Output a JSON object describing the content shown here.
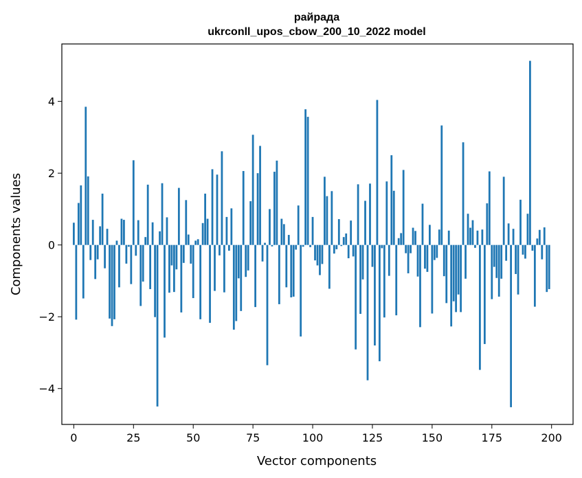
{
  "chart_data": {
    "type": "bar",
    "title_line1": "райрада",
    "title_line2": "ukrconll_upos_cbow_200_10_2022 model",
    "xlabel": "Vector components",
    "ylabel": "Components values",
    "xlim": [
      -5,
      209
    ],
    "ylim": [
      -5,
      5.6
    ],
    "xticks": [
      0,
      25,
      50,
      75,
      100,
      125,
      150,
      175,
      200
    ],
    "yticks": [
      -4,
      -2,
      0,
      2,
      4
    ],
    "ytick_labels": [
      "−4",
      "−2",
      "0",
      "2",
      "4"
    ],
    "bar_color": "#1f77b4",
    "grid": false,
    "values": [
      0.62,
      -2.08,
      1.17,
      1.66,
      -1.49,
      3.85,
      1.91,
      -0.42,
      0.7,
      -0.95,
      -0.4,
      0.52,
      1.43,
      -0.65,
      0.45,
      -2.05,
      -2.26,
      -2.07,
      0.12,
      -1.18,
      0.73,
      0.7,
      -0.52,
      -0.05,
      -1.09,
      2.36,
      -0.3,
      0.69,
      -1.7,
      -1.02,
      0.22,
      1.68,
      -1.23,
      0.63,
      -2.01,
      -4.5,
      0.38,
      1.72,
      -2.58,
      0.77,
      -1.33,
      -0.57,
      -1.31,
      -0.68,
      1.59,
      -1.88,
      -0.5,
      1.25,
      0.29,
      -0.52,
      -1.48,
      0.12,
      0.16,
      -2.07,
      0.61,
      1.43,
      0.73,
      -2.17,
      2.11,
      -1.28,
      1.96,
      -0.29,
      2.61,
      -1.32,
      0.78,
      -0.16,
      1.02,
      -2.36,
      -2.12,
      -0.93,
      -1.84,
      2.06,
      -0.89,
      -0.71,
      1.22,
      3.07,
      -1.73,
      2.0,
      2.76,
      -0.46,
      0.06,
      -3.35,
      1.0,
      -0.04,
      2.04,
      2.35,
      -1.65,
      0.73,
      0.58,
      -1.18,
      0.28,
      -1.46,
      -1.44,
      -0.13,
      1.1,
      -2.55,
      -0.05,
      3.78,
      3.57,
      -0.06,
      0.78,
      -0.43,
      -0.57,
      -0.84,
      -0.53,
      1.9,
      1.36,
      -1.22,
      1.5,
      -0.24,
      -0.12,
      0.72,
      -0.03,
      0.22,
      0.32,
      -0.37,
      0.68,
      -0.32,
      -2.91,
      1.69,
      -1.92,
      -0.96,
      1.23,
      -3.77,
      1.71,
      -0.61,
      -2.8,
      4.04,
      -3.24,
      -0.09,
      -2.02,
      1.77,
      -0.86,
      2.5,
      1.51,
      -1.96,
      0.19,
      0.33,
      2.09,
      -0.23,
      -0.79,
      -0.23,
      0.48,
      0.39,
      -0.88,
      -2.29,
      1.15,
      -0.66,
      -0.75,
      0.56,
      -1.91,
      -0.42,
      -0.36,
      0.43,
      3.33,
      -0.87,
      -1.62,
      0.4,
      -2.27,
      -1.57,
      -1.87,
      -1.38,
      -1.87,
      2.86,
      -0.94,
      0.87,
      0.48,
      0.69,
      -0.08,
      0.4,
      -3.48,
      0.43,
      -2.76,
      1.16,
      2.05,
      -1.51,
      -0.61,
      -0.92,
      -1.44,
      -0.94,
      1.9,
      -0.44,
      0.6,
      -4.52,
      0.45,
      -0.81,
      -1.38,
      1.26,
      -0.27,
      -0.38,
      0.87,
      5.13,
      -0.16,
      -1.72,
      0.18,
      0.42,
      -0.4,
      0.49,
      -1.31,
      -1.23
    ]
  }
}
